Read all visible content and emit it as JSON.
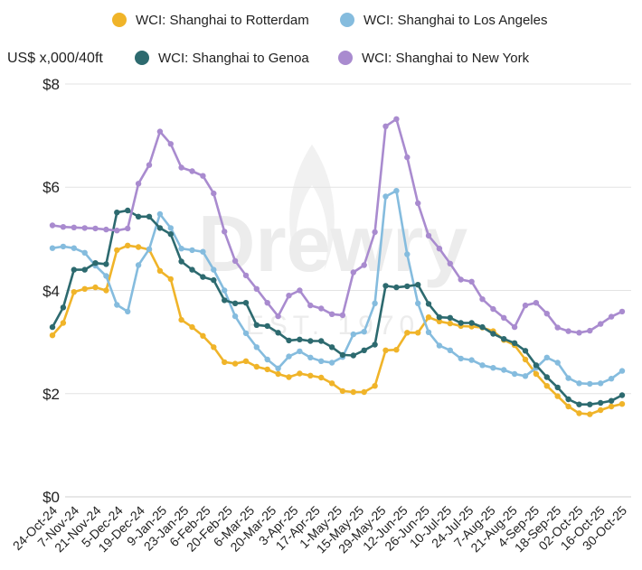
{
  "chart_data": {
    "type": "line",
    "unit_label": "US$ x,000/40ft",
    "watermark": {
      "brand": "Drewry",
      "est": "EST. 1970"
    },
    "y_ticks": [
      "$0",
      "$2",
      "$4",
      "$6",
      "$8"
    ],
    "ylim": [
      0,
      8
    ],
    "x_tick_labels": [
      "24-Oct-24",
      "7-Nov-24",
      "21-Nov-24",
      "5-Dec-24",
      "19-Dec-24",
      "9-Jan-25",
      "23-Jan-25",
      "6-Feb-25",
      "20-Feb-25",
      "6-Mar-25",
      "20-Mar-25",
      "3-Apr-25",
      "17-Apr-25",
      "1-May-25",
      "15-May-25",
      "29-May-25",
      "12-Jun-25",
      "26-Jun-25",
      "10-Jul-25",
      "24-Jul-25",
      "7-Aug-25",
      "21-Aug-25",
      "4-Sep-25",
      "18-Sep-25",
      "02-Oct-25",
      "16-Oct-25",
      "30-Oct-25"
    ],
    "grid": true,
    "legend_position": "top",
    "series": [
      {
        "name": "WCI: Shanghai to Rotterdam",
        "color": "#f0b429",
        "values": [
          3.13,
          3.37,
          3.97,
          4.03,
          4.06,
          4.0,
          4.78,
          4.87,
          4.84,
          4.79,
          4.38,
          4.22,
          3.43,
          3.29,
          3.12,
          2.9,
          2.61,
          2.58,
          2.63,
          2.52,
          2.47,
          2.38,
          2.32,
          2.39,
          2.35,
          2.31,
          2.2,
          2.05,
          2.03,
          2.03,
          2.15,
          2.84,
          2.85,
          3.18,
          3.18,
          3.48,
          3.4,
          3.36,
          3.31,
          3.3,
          3.28,
          3.21,
          3.04,
          2.94,
          2.66,
          2.38,
          2.15,
          1.95,
          1.75,
          1.62,
          1.6,
          1.68,
          1.75,
          1.8
        ]
      },
      {
        "name": "WCI: Shanghai to Los Angeles",
        "color": "#85bcde",
        "values": [
          4.82,
          4.85,
          4.82,
          4.73,
          4.48,
          4.28,
          3.72,
          3.59,
          4.49,
          4.8,
          5.48,
          5.21,
          4.81,
          4.78,
          4.75,
          4.4,
          4.0,
          3.5,
          3.17,
          2.9,
          2.66,
          2.49,
          2.72,
          2.82,
          2.7,
          2.63,
          2.6,
          2.71,
          3.15,
          3.2,
          3.75,
          5.82,
          5.93,
          4.7,
          3.75,
          3.19,
          2.93,
          2.84,
          2.68,
          2.65,
          2.55,
          2.5,
          2.46,
          2.38,
          2.34,
          2.5,
          2.7,
          2.6,
          2.3,
          2.2,
          2.19,
          2.2,
          2.29,
          2.44
        ]
      },
      {
        "name": "WCI: Shanghai to Genoa",
        "color": "#2d6a6f",
        "values": [
          3.29,
          3.67,
          4.4,
          4.4,
          4.53,
          4.51,
          5.51,
          5.55,
          5.43,
          5.43,
          5.21,
          5.09,
          4.56,
          4.4,
          4.26,
          4.2,
          3.81,
          3.75,
          3.76,
          3.33,
          3.31,
          3.18,
          3.03,
          3.05,
          3.02,
          3.02,
          2.9,
          2.75,
          2.74,
          2.84,
          2.95,
          4.09,
          4.06,
          4.08,
          4.11,
          3.74,
          3.48,
          3.47,
          3.37,
          3.37,
          3.29,
          3.16,
          3.06,
          2.98,
          2.83,
          2.55,
          2.32,
          2.12,
          1.89,
          1.79,
          1.79,
          1.82,
          1.86,
          1.97
        ]
      },
      {
        "name": "WCI: Shanghai to New York",
        "color": "#a98bcf",
        "values": [
          5.26,
          5.23,
          5.22,
          5.21,
          5.2,
          5.18,
          5.16,
          5.2,
          6.07,
          6.43,
          7.08,
          6.84,
          6.38,
          6.31,
          6.22,
          5.88,
          5.14,
          4.57,
          4.29,
          4.03,
          3.76,
          3.5,
          3.9,
          4.0,
          3.71,
          3.65,
          3.54,
          3.52,
          4.35,
          4.49,
          5.13,
          7.18,
          7.32,
          6.58,
          5.69,
          5.06,
          4.81,
          4.52,
          4.21,
          4.17,
          3.83,
          3.64,
          3.47,
          3.29,
          3.71,
          3.76,
          3.55,
          3.28,
          3.21,
          3.18,
          3.22,
          3.35,
          3.49,
          3.59
        ]
      }
    ]
  }
}
